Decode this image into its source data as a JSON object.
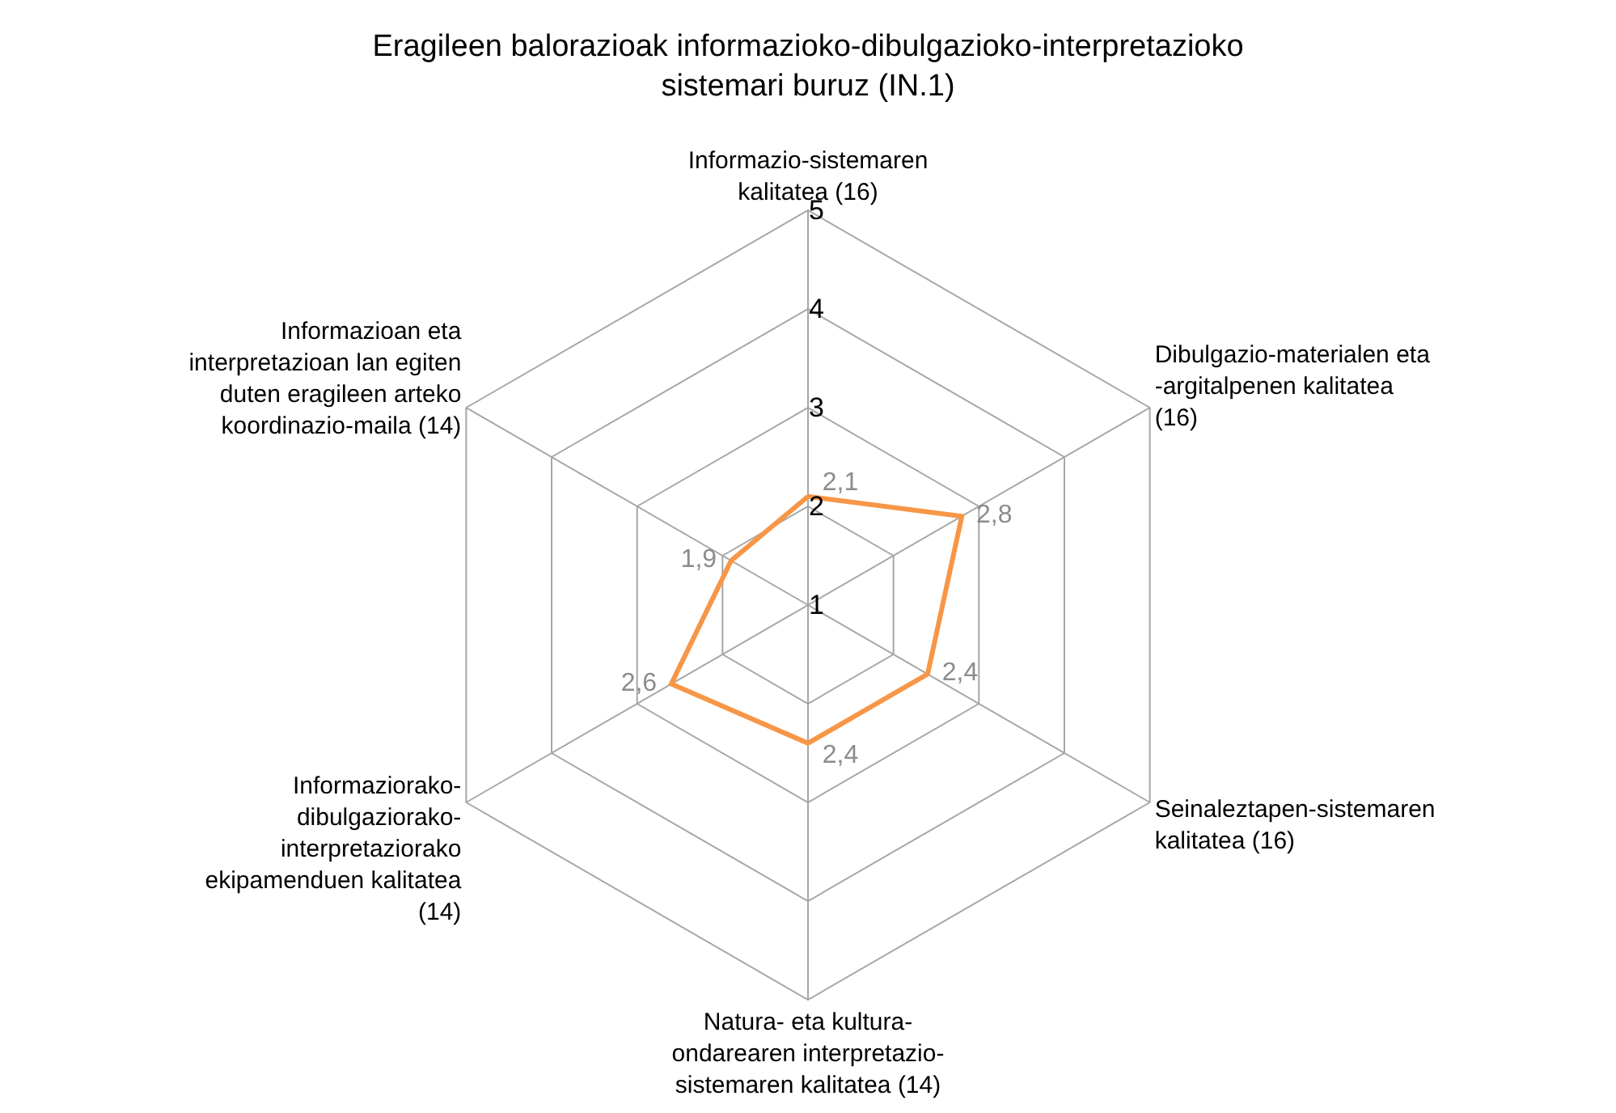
{
  "chart_data": {
    "type": "radar",
    "title": "Eragileen balorazioak informazioko-dibulgazioko-interpretazioko sistemari buruz (IN.1)",
    "categories": [
      "Informazio-sistemaren kalitatea (16)",
      "Dibulgazio-materialen eta -argitalpenen kalitatea (16)",
      "Seinaleztapen-sistemaren kalitatea (16)",
      "Natura- eta kultura-ondarearen interpretazio-sistemaren kalitatea (14)",
      "Informaziorako-dibulgaziorako-interpretaziorako ekipamenduen kalitatea (14)",
      "Informazioan eta interpretazioan lan egiten duten eragileen arteko koordinazio-maila (14)"
    ],
    "series": [
      {
        "color": "#f79646",
        "values": [
          2.1,
          2.8,
          2.4,
          2.4,
          2.6,
          1.9
        ],
        "value_labels": [
          "2,1",
          "2,8",
          "2,4",
          "2,4",
          "2,6",
          "1,9"
        ]
      }
    ],
    "ylim": [
      1,
      5
    ],
    "yticks": [
      1,
      2,
      3,
      4,
      5
    ],
    "grid": true,
    "marker": "none",
    "line_style": "solid"
  }
}
